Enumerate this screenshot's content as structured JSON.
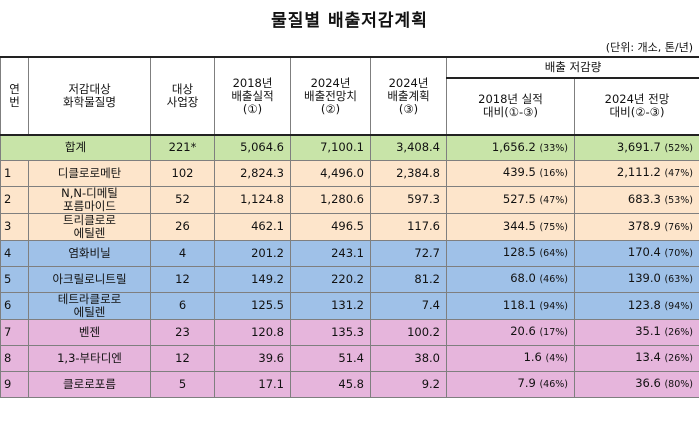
{
  "title": "물질별 배출저감계획",
  "unit_note": "(단위: 개소, 톤/년)",
  "headers": {
    "no": [
      "연",
      "번"
    ],
    "substance": [
      "저감대상",
      "화학물질명"
    ],
    "sites": [
      "대상",
      "사업장"
    ],
    "actual_2018": [
      "2018년",
      "배출실적",
      "(①)"
    ],
    "forecast_2024": [
      "2024년",
      "배출전망치",
      "(②)"
    ],
    "plan_2024": [
      "2024년",
      "배출계획",
      "(③)"
    ],
    "reduction_group": "배출 저감량",
    "vs_2018": [
      "2018년 실적",
      "대비(①-③)"
    ],
    "vs_2024": [
      "2024년 전망",
      "대비(②-③)"
    ]
  },
  "total_row": {
    "label": "합계",
    "sites": "221*",
    "actual_2018": "5,064.6",
    "forecast_2024": "7,100.1",
    "plan_2024": "3,408.4",
    "vs_2018": "1,656.2",
    "vs_2018_pct": "(33%)",
    "vs_2024": "3,691.7",
    "vs_2024_pct": "(52%)"
  },
  "rows": [
    {
      "no": "1",
      "name": [
        "디클로로메탄"
      ],
      "sites": "102",
      "actual_2018": "2,824.3",
      "forecast_2024": "4,496.0",
      "plan_2024": "2,384.8",
      "vs_2018": "439.5",
      "vs_2018_pct": "(16%)",
      "vs_2024": "2,111.2",
      "vs_2024_pct": "(47%)",
      "group": "yellow"
    },
    {
      "no": "2",
      "name": [
        "N,N-디메틸",
        "포름마이드"
      ],
      "sites": "52",
      "actual_2018": "1,124.8",
      "forecast_2024": "1,280.6",
      "plan_2024": "597.3",
      "vs_2018": "527.5",
      "vs_2018_pct": "(47%)",
      "vs_2024": "683.3",
      "vs_2024_pct": "(53%)",
      "group": "yellow"
    },
    {
      "no": "3",
      "name": [
        "트리클로로",
        "에틸렌"
      ],
      "sites": "26",
      "actual_2018": "462.1",
      "forecast_2024": "496.5",
      "plan_2024": "117.6",
      "vs_2018": "344.5",
      "vs_2018_pct": "(75%)",
      "vs_2024": "378.9",
      "vs_2024_pct": "(76%)",
      "group": "yellow"
    },
    {
      "no": "4",
      "name": [
        "염화비닐"
      ],
      "sites": "4",
      "actual_2018": "201.2",
      "forecast_2024": "243.1",
      "plan_2024": "72.7",
      "vs_2018": "128.5",
      "vs_2018_pct": "(64%)",
      "vs_2024": "170.4",
      "vs_2024_pct": "(70%)",
      "group": "blue"
    },
    {
      "no": "5",
      "name": [
        "아크릴로니트릴"
      ],
      "sites": "12",
      "actual_2018": "149.2",
      "forecast_2024": "220.2",
      "plan_2024": "81.2",
      "vs_2018": "68.0",
      "vs_2018_pct": "(46%)",
      "vs_2024": "139.0",
      "vs_2024_pct": "(63%)",
      "group": "blue"
    },
    {
      "no": "6",
      "name": [
        "테트라클로로",
        "에틸렌"
      ],
      "sites": "6",
      "actual_2018": "125.5",
      "forecast_2024": "131.2",
      "plan_2024": "7.4",
      "vs_2018": "118.1",
      "vs_2018_pct": "(94%)",
      "vs_2024": "123.8",
      "vs_2024_pct": "(94%)",
      "group": "blue"
    },
    {
      "no": "7",
      "name": [
        "벤젠"
      ],
      "sites": "23",
      "actual_2018": "120.8",
      "forecast_2024": "135.3",
      "plan_2024": "100.2",
      "vs_2018": "20.6",
      "vs_2018_pct": "(17%)",
      "vs_2024": "35.1",
      "vs_2024_pct": "(26%)",
      "group": "pink"
    },
    {
      "no": "8",
      "name": [
        "1,3-부타디엔"
      ],
      "sites": "12",
      "actual_2018": "39.6",
      "forecast_2024": "51.4",
      "plan_2024": "38.0",
      "vs_2018": "1.6",
      "vs_2018_pct": "(4%)",
      "vs_2024": "13.4",
      "vs_2024_pct": "(26%)",
      "group": "pink"
    },
    {
      "no": "9",
      "name": [
        "클로로포름"
      ],
      "sites": "5",
      "actual_2018": "17.1",
      "forecast_2024": "45.8",
      "plan_2024": "9.2",
      "vs_2018": "7.9",
      "vs_2018_pct": "(46%)",
      "vs_2024": "36.6",
      "vs_2024_pct": "(80%)",
      "group": "pink"
    }
  ],
  "colors": {
    "total": "#c8e4a8",
    "yellow": "#fde5cb",
    "blue": "#9fc1e8",
    "pink": "#e6b5dc"
  }
}
